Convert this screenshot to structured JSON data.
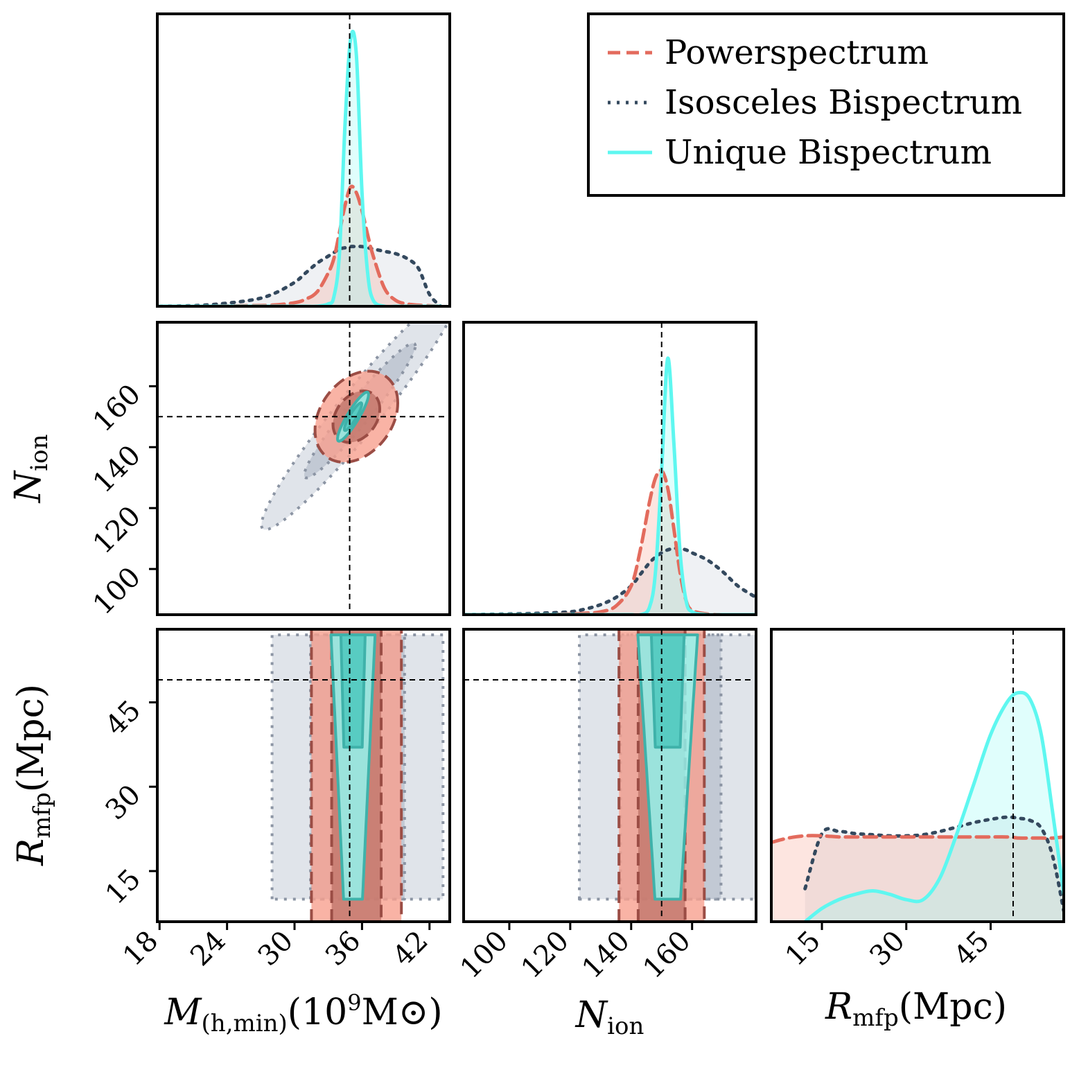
{
  "chart_data": {
    "type": "corner",
    "parameters": [
      {
        "key": "mh",
        "label_main": "M",
        "label_sub": "(h,min)",
        "label_tail": "(10",
        "label_sup": "9",
        "label_end": "M⊙)",
        "ticks": [
          "18",
          "24",
          "30",
          "36",
          "42"
        ],
        "range": [
          17.8,
          43.8
        ],
        "truth": 34.9
      },
      {
        "key": "nion",
        "label_main": "N",
        "label_sub": "ion",
        "ticks": [
          "100",
          "120",
          "140",
          "160"
        ],
        "range": [
          85,
          181
        ],
        "truth": 150
      },
      {
        "key": "rmfp",
        "label_main": "R",
        "label_sub": "mfp",
        "label_tail": "(Mpc)",
        "ticks": [
          "15",
          "30",
          "45"
        ],
        "range": [
          6,
          58
        ],
        "truth": 49
      }
    ],
    "legend": {
      "position": "top-right",
      "entries": [
        {
          "name": "Powerspectrum",
          "style": "dashed",
          "color": "#e36b5d"
        },
        {
          "name": "Isosceles Bispectrum",
          "style": "dotted",
          "color": "#34495e"
        },
        {
          "name": "Unique Bispectrum",
          "style": "solid",
          "color": "#5ef7f0"
        }
      ]
    },
    "marginals": {
      "mh": {
        "x": [
          18,
          22,
          26,
          28,
          30,
          31,
          32,
          33,
          33.5,
          34,
          34.5,
          35,
          35.5,
          36,
          36.5,
          37,
          38,
          39,
          40,
          41,
          42,
          43
        ],
        "Powerspectrum": [
          0,
          0,
          0.005,
          0.01,
          0.03,
          0.06,
          0.12,
          0.28,
          0.4,
          0.62,
          0.85,
          1.0,
          0.95,
          0.8,
          0.6,
          0.42,
          0.15,
          0.05,
          0.02,
          0.01,
          0.005,
          0
        ],
        "Isosceles Bispectrum": [
          0,
          0.01,
          0.05,
          0.1,
          0.2,
          0.28,
          0.36,
          0.42,
          0.45,
          0.48,
          0.49,
          0.5,
          0.5,
          0.5,
          0.49,
          0.48,
          0.46,
          0.44,
          0.4,
          0.32,
          0.1,
          0
        ],
        "Unique Bispectrum": [
          0,
          0,
          0,
          0,
          0,
          0,
          0,
          0.02,
          0.08,
          0.45,
          1.55,
          2.25,
          2.1,
          0.95,
          0.28,
          0.05,
          0,
          0,
          0,
          0,
          0,
          0
        ]
      },
      "nion": {
        "x": [
          85,
          100,
          110,
          120,
          125,
          130,
          135,
          140,
          143,
          146,
          148,
          150,
          152,
          154,
          156,
          158,
          160,
          165,
          170,
          175,
          181
        ],
        "Powerspectrum": [
          0,
          0,
          0,
          0.005,
          0.01,
          0.02,
          0.06,
          0.2,
          0.45,
          0.78,
          0.95,
          1.0,
          0.88,
          0.6,
          0.3,
          0.1,
          0.03,
          0.005,
          0,
          0,
          0
        ],
        "Isosceles Bispectrum": [
          0,
          0.005,
          0.01,
          0.02,
          0.04,
          0.07,
          0.12,
          0.2,
          0.28,
          0.36,
          0.4,
          0.43,
          0.45,
          0.46,
          0.46,
          0.45,
          0.43,
          0.38,
          0.3,
          0.2,
          0.12
        ],
        "Unique Bispectrum": [
          0,
          0,
          0,
          0,
          0,
          0,
          0,
          0,
          0,
          0.05,
          0.3,
          1.0,
          1.78,
          1.2,
          0.45,
          0.1,
          0.02,
          0,
          0,
          0,
          0
        ]
      },
      "rmfp": {
        "x": [
          6,
          9,
          12,
          15,
          18,
          21,
          24,
          27,
          30,
          33,
          36,
          39,
          42,
          45,
          48,
          50,
          52,
          54,
          56,
          58
        ],
        "Powerspectrum": [
          0.72,
          0.76,
          0.78,
          0.78,
          0.77,
          0.77,
          0.77,
          0.77,
          0.77,
          0.77,
          0.77,
          0.77,
          0.77,
          0.77,
          0.77,
          0.76,
          0.76,
          0.76,
          0.76,
          0.77
        ],
        "Isosceles Bispectrum": [
          null,
          null,
          0.3,
          0.8,
          0.82,
          0.8,
          0.79,
          0.78,
          0.78,
          0.79,
          0.82,
          0.86,
          0.9,
          0.93,
          0.95,
          0.94,
          0.92,
          0.85,
          0.6,
          0.1
        ],
        "Unique Bispectrum": [
          null,
          null,
          0.0,
          0.12,
          0.2,
          0.25,
          0.28,
          0.25,
          0.2,
          0.2,
          0.4,
          0.8,
          1.25,
          1.7,
          2.0,
          2.08,
          2.02,
          1.7,
          1.0,
          0.25
        ]
      }
    },
    "contours_2d": {
      "nion_vs_mh": {
        "Powerspectrum": {
          "center": [
            35.5,
            150
          ],
          "sigma": [
            1.6,
            6.5
          ],
          "rho": 0.3
        },
        "Isosceles Bispectrum": {
          "center": [
            35.8,
            152
          ],
          "sigma": [
            3.8,
            17
          ],
          "rho": 0.96
        },
        "Unique Bispectrum": {
          "center": [
            35.2,
            150
          ],
          "sigma": [
            0.6,
            3.5
          ],
          "rho": 0.9
        }
      },
      "rmfp_vs_mh": {
        "Powerspectrum": {
          "xcenter": 35.5,
          "xsigma": 2.0,
          "yrange": [
            6,
            58
          ]
        },
        "Isosceles Bispectrum": {
          "xcenter": 35.6,
          "xsigma": 3.8,
          "yrange": [
            10,
            57
          ]
        },
        "Unique Bispectrum": {
          "xcenter": 35.2,
          "xsigma": 0.7,
          "yrange": [
            10,
            57
          ]
        }
      },
      "rmfp_vs_nion": {
        "Powerspectrum": {
          "xcenter": 150,
          "xsigma": 7.0,
          "yrange": [
            6,
            58
          ]
        },
        "Isosceles Bispectrum": {
          "xcenter": 153,
          "xsigma": 15,
          "yrange": [
            10,
            57
          ]
        },
        "Unique Bispectrum": {
          "xcenter": 152,
          "xsigma": 3.5,
          "yrange": [
            10,
            57
          ]
        }
      }
    }
  }
}
